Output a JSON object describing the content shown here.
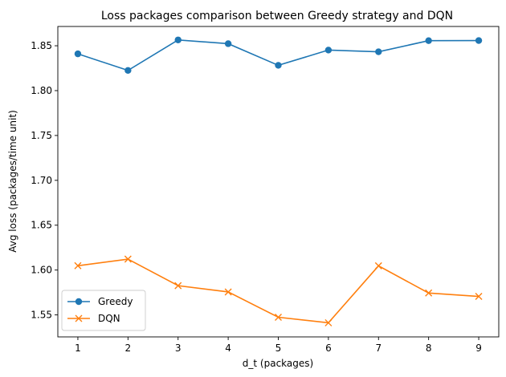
{
  "chart_data": {
    "type": "line",
    "title": "Loss packages comparison between Greedy strategy and DQN",
    "xlabel": "d_t (packages)",
    "ylabel": "Avg loss (packages/time unit)",
    "x": [
      1,
      2,
      3,
      4,
      5,
      6,
      7,
      8,
      9
    ],
    "xlim": [
      0.6,
      9.4
    ],
    "ylim": [
      1.5255,
      1.8715
    ],
    "xticks": [
      1,
      2,
      3,
      4,
      5,
      6,
      7,
      8,
      9
    ],
    "xtick_labels": [
      "1",
      "2",
      "3",
      "4",
      "5",
      "6",
      "7",
      "8",
      "9"
    ],
    "yticks": [
      1.55,
      1.6,
      1.65,
      1.7,
      1.75,
      1.8,
      1.85
    ],
    "ytick_labels": [
      "1.55",
      "1.60",
      "1.65",
      "1.70",
      "1.75",
      "1.80",
      "1.85"
    ],
    "grid": false,
    "legend_position": "lower-left",
    "series": [
      {
        "name": "Greedy",
        "marker": "circle",
        "color": "#1f77b4",
        "values": [
          1.841,
          1.8225,
          1.8565,
          1.8523,
          1.8282,
          1.8452,
          1.8433,
          1.8557,
          1.8558
        ]
      },
      {
        "name": "DQN",
        "marker": "x",
        "color": "#ff7f0e",
        "values": [
          1.6048,
          1.6122,
          1.5826,
          1.5756,
          1.5474,
          1.5412,
          1.6047,
          1.5744,
          1.5706
        ]
      }
    ]
  }
}
